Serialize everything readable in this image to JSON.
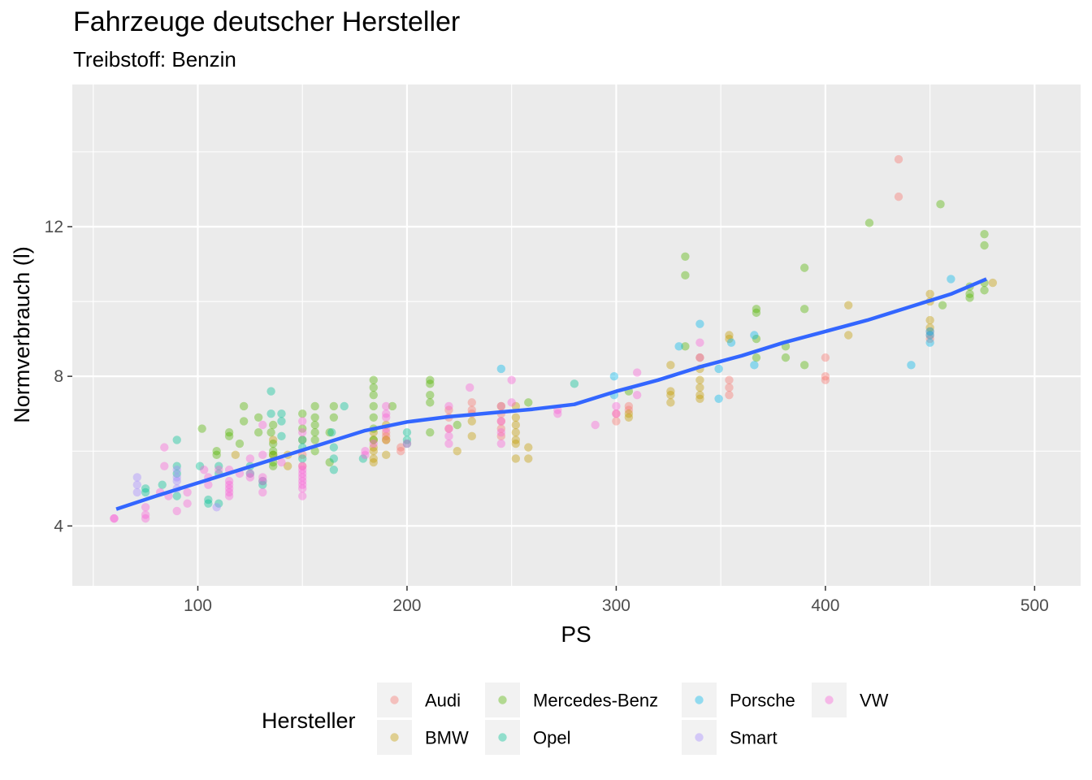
{
  "chart_data": {
    "type": "scatter",
    "title": "Fahrzeuge deutscher Hersteller",
    "subtitle": "Treibstoff: Benzin",
    "xlabel": "PS",
    "ylabel": "Normverbrauch (l)",
    "xlim": [
      40,
      522
    ],
    "ylim": [
      2.4,
      15.8
    ],
    "xticks": [
      100,
      200,
      300,
      400,
      500
    ],
    "yticks": [
      4,
      8,
      12
    ],
    "grid": true,
    "legend": {
      "title": "Hersteller",
      "position": "bottom",
      "entries": [
        {
          "name": "Audi",
          "color": "#F8766D"
        },
        {
          "name": "BMW",
          "color": "#C49A00"
        },
        {
          "name": "Mercedes-Benz",
          "color": "#53B400"
        },
        {
          "name": "Opel",
          "color": "#00C094"
        },
        {
          "name": "Porsche",
          "color": "#00B6EB"
        },
        {
          "name": "Smart",
          "color": "#A58AFF"
        },
        {
          "name": "VW",
          "color": "#FB61D7"
        }
      ]
    },
    "series": [
      {
        "name": "Audi",
        "color": "#F8766D",
        "points": [
          [
            435,
            13.8
          ],
          [
            435,
            12.8
          ],
          [
            400,
            8.5
          ],
          [
            400,
            8.0
          ],
          [
            400,
            7.9
          ],
          [
            354,
            7.9
          ],
          [
            354,
            7.7
          ],
          [
            354,
            7.5
          ],
          [
            306,
            7.2
          ],
          [
            306,
            7.1
          ],
          [
            300,
            7.0
          ],
          [
            300,
            6.8
          ],
          [
            245,
            7.0
          ],
          [
            245,
            6.8
          ],
          [
            245,
            6.6
          ],
          [
            245,
            6.4
          ],
          [
            231,
            7.3
          ],
          [
            231,
            7.1
          ],
          [
            231,
            7.0
          ],
          [
            220,
            7.1
          ],
          [
            220,
            6.9
          ],
          [
            220,
            6.6
          ],
          [
            190,
            6.5
          ],
          [
            190,
            6.4
          ],
          [
            190,
            6.3
          ],
          [
            197,
            6.1
          ],
          [
            197,
            6.0
          ],
          [
            150,
            5.9
          ],
          [
            150,
            5.6
          ],
          [
            450,
            9.2
          ],
          [
            450,
            9.1
          ],
          [
            450,
            9.0
          ]
        ]
      },
      {
        "name": "BMW",
        "color": "#C49A00",
        "points": [
          [
            480,
            10.5
          ],
          [
            450,
            10.2
          ],
          [
            450,
            10.0
          ],
          [
            450,
            9.5
          ],
          [
            450,
            9.3
          ],
          [
            411,
            9.9
          ],
          [
            411,
            9.1
          ],
          [
            354,
            9.1
          ],
          [
            354,
            9.0
          ],
          [
            340,
            8.5
          ],
          [
            340,
            8.2
          ],
          [
            340,
            7.9
          ],
          [
            340,
            7.7
          ],
          [
            340,
            7.5
          ],
          [
            340,
            7.4
          ],
          [
            326,
            8.3
          ],
          [
            326,
            7.6
          ],
          [
            326,
            7.5
          ],
          [
            326,
            7.3
          ],
          [
            306,
            7.0
          ],
          [
            306,
            6.9
          ],
          [
            258,
            6.1
          ],
          [
            258,
            5.8
          ],
          [
            252,
            7.2
          ],
          [
            252,
            6.9
          ],
          [
            252,
            6.7
          ],
          [
            252,
            6.5
          ],
          [
            252,
            6.3
          ],
          [
            252,
            6.2
          ],
          [
            252,
            5.8
          ],
          [
            245,
            7.2
          ],
          [
            231,
            6.8
          ],
          [
            231,
            6.4
          ],
          [
            224,
            6.0
          ],
          [
            184,
            6.5
          ],
          [
            184,
            6.3
          ],
          [
            184,
            6.1
          ],
          [
            184,
            6.0
          ],
          [
            184,
            5.8
          ],
          [
            184,
            5.7
          ],
          [
            190,
            6.7
          ],
          [
            190,
            6.3
          ],
          [
            190,
            5.9
          ],
          [
            143,
            5.9
          ],
          [
            143,
            5.6
          ],
          [
            136,
            6.3
          ],
          [
            136,
            5.9
          ],
          [
            150,
            6.3
          ],
          [
            118,
            5.9
          ]
        ]
      },
      {
        "name": "Mercedes-Benz",
        "color": "#53B400",
        "points": [
          [
            455,
            12.6
          ],
          [
            421,
            12.1
          ],
          [
            476,
            11.8
          ],
          [
            476,
            11.5
          ],
          [
            476,
            10.5
          ],
          [
            476,
            10.3
          ],
          [
            469,
            10.4
          ],
          [
            469,
            10.2
          ],
          [
            469,
            10.1
          ],
          [
            456,
            9.9
          ],
          [
            333,
            11.2
          ],
          [
            333,
            10.7
          ],
          [
            333,
            8.8
          ],
          [
            390,
            10.9
          ],
          [
            390,
            9.8
          ],
          [
            390,
            8.3
          ],
          [
            367,
            9.8
          ],
          [
            367,
            9.7
          ],
          [
            367,
            9.0
          ],
          [
            367,
            8.5
          ],
          [
            381,
            8.8
          ],
          [
            381,
            8.5
          ],
          [
            306,
            7.6
          ],
          [
            258,
            7.3
          ],
          [
            211,
            7.9
          ],
          [
            211,
            7.8
          ],
          [
            211,
            7.5
          ],
          [
            211,
            7.3
          ],
          [
            211,
            6.5
          ],
          [
            184,
            7.9
          ],
          [
            184,
            7.7
          ],
          [
            184,
            7.5
          ],
          [
            184,
            7.2
          ],
          [
            184,
            6.9
          ],
          [
            184,
            6.6
          ],
          [
            184,
            6.3
          ],
          [
            156,
            7.2
          ],
          [
            156,
            6.9
          ],
          [
            156,
            6.7
          ],
          [
            156,
            6.5
          ],
          [
            156,
            6.3
          ],
          [
            156,
            6.0
          ],
          [
            163,
            6.5
          ],
          [
            163,
            5.7
          ],
          [
            136,
            6.7
          ],
          [
            136,
            6.2
          ],
          [
            136,
            6.0
          ],
          [
            136,
            5.9
          ],
          [
            136,
            5.7
          ],
          [
            136,
            5.6
          ],
          [
            122,
            7.2
          ],
          [
            122,
            6.8
          ],
          [
            129,
            6.5
          ],
          [
            129,
            6.9
          ],
          [
            115,
            6.5
          ],
          [
            115,
            6.4
          ],
          [
            109,
            6.0
          ],
          [
            109,
            5.9
          ],
          [
            102,
            6.6
          ],
          [
            150,
            7.0
          ],
          [
            150,
            6.6
          ],
          [
            224,
            6.7
          ],
          [
            165,
            7.2
          ],
          [
            165,
            6.9
          ],
          [
            193,
            7.2
          ],
          [
            120,
            6.2
          ],
          [
            135,
            6.5
          ]
        ]
      },
      {
        "name": "Opel",
        "color": "#00C094",
        "points": [
          [
            90,
            6.3
          ],
          [
            90,
            5.6
          ],
          [
            90,
            5.4
          ],
          [
            90,
            4.8
          ],
          [
            75,
            5.0
          ],
          [
            75,
            4.9
          ],
          [
            83,
            5.1
          ],
          [
            101,
            5.6
          ],
          [
            105,
            4.7
          ],
          [
            105,
            4.6
          ],
          [
            110,
            5.6
          ],
          [
            110,
            5.4
          ],
          [
            110,
            4.6
          ],
          [
            125,
            5.6
          ],
          [
            125,
            5.4
          ],
          [
            131,
            5.2
          ],
          [
            131,
            5.1
          ],
          [
            135,
            7.6
          ],
          [
            135,
            7.0
          ],
          [
            140,
            7.0
          ],
          [
            140,
            6.8
          ],
          [
            140,
            6.4
          ],
          [
            150,
            6.3
          ],
          [
            150,
            6.1
          ],
          [
            150,
            5.8
          ],
          [
            165,
            6.1
          ],
          [
            165,
            5.8
          ],
          [
            165,
            5.5
          ],
          [
            170,
            7.2
          ],
          [
            179,
            5.8
          ],
          [
            200,
            6.5
          ],
          [
            200,
            6.3
          ],
          [
            200,
            6.2
          ],
          [
            280,
            7.8
          ],
          [
            164,
            6.5
          ]
        ]
      },
      {
        "name": "Porsche",
        "color": "#00B6EB",
        "points": [
          [
            460,
            10.6
          ],
          [
            450,
            9.2
          ],
          [
            450,
            9.1
          ],
          [
            450,
            8.9
          ],
          [
            441,
            8.3
          ],
          [
            366,
            9.1
          ],
          [
            366,
            8.3
          ],
          [
            355,
            8.9
          ],
          [
            349,
            8.2
          ],
          [
            349,
            7.4
          ],
          [
            340,
            9.4
          ],
          [
            330,
            8.8
          ],
          [
            299,
            8.0
          ],
          [
            299,
            7.5
          ],
          [
            245,
            8.2
          ]
        ]
      },
      {
        "name": "Smart",
        "color": "#A58AFF",
        "points": [
          [
            71,
            5.3
          ],
          [
            71,
            5.1
          ],
          [
            71,
            4.9
          ],
          [
            90,
            5.5
          ],
          [
            90,
            5.3
          ],
          [
            90,
            5.2
          ],
          [
            90,
            5.0
          ],
          [
            109,
            4.5
          ]
        ]
      },
      {
        "name": "VW",
        "color": "#FB61D7",
        "points": [
          [
            60,
            4.2
          ],
          [
            60,
            4.2
          ],
          [
            75,
            4.5
          ],
          [
            75,
            4.3
          ],
          [
            75,
            4.2
          ],
          [
            82,
            4.9
          ],
          [
            84,
            6.1
          ],
          [
            84,
            5.6
          ],
          [
            86,
            4.8
          ],
          [
            90,
            4.4
          ],
          [
            95,
            4.9
          ],
          [
            95,
            4.6
          ],
          [
            103,
            5.5
          ],
          [
            105,
            5.3
          ],
          [
            105,
            5.1
          ],
          [
            115,
            5.5
          ],
          [
            115,
            5.2
          ],
          [
            115,
            5.1
          ],
          [
            115,
            5.0
          ],
          [
            115,
            4.9
          ],
          [
            115,
            4.8
          ],
          [
            125,
            5.8
          ],
          [
            125,
            5.4
          ],
          [
            125,
            5.3
          ],
          [
            131,
            6.7
          ],
          [
            131,
            5.9
          ],
          [
            131,
            5.3
          ],
          [
            131,
            5.2
          ],
          [
            131,
            4.9
          ],
          [
            150,
            6.8
          ],
          [
            150,
            6.5
          ],
          [
            150,
            5.6
          ],
          [
            150,
            5.5
          ],
          [
            150,
            5.4
          ],
          [
            150,
            5.3
          ],
          [
            150,
            5.2
          ],
          [
            150,
            5.1
          ],
          [
            150,
            5.0
          ],
          [
            150,
            4.8
          ],
          [
            180,
            6.0
          ],
          [
            180,
            5.9
          ],
          [
            184,
            6.2
          ],
          [
            190,
            7.2
          ],
          [
            190,
            7.0
          ],
          [
            190,
            6.9
          ],
          [
            190,
            6.6
          ],
          [
            200,
            6.2
          ],
          [
            220,
            7.2
          ],
          [
            220,
            6.6
          ],
          [
            220,
            6.4
          ],
          [
            220,
            6.2
          ],
          [
            230,
            7.7
          ],
          [
            245,
            7.2
          ],
          [
            245,
            6.8
          ],
          [
            245,
            6.5
          ],
          [
            245,
            6.2
          ],
          [
            250,
            7.9
          ],
          [
            250,
            7.3
          ],
          [
            272,
            7.1
          ],
          [
            272,
            7.0
          ],
          [
            290,
            6.7
          ],
          [
            300,
            7.2
          ],
          [
            300,
            7.0
          ],
          [
            310,
            8.1
          ],
          [
            310,
            7.5
          ],
          [
            340,
            8.9
          ],
          [
            340,
            8.5
          ],
          [
            110,
            5.5
          ],
          [
            140,
            5.7
          ],
          [
            120,
            5.4
          ]
        ]
      }
    ],
    "trend_line": {
      "type": "loess",
      "color": "#3366FF",
      "points": [
        [
          61,
          4.45
        ],
        [
          80,
          4.8
        ],
        [
          100,
          5.15
        ],
        [
          120,
          5.5
        ],
        [
          140,
          5.85
        ],
        [
          160,
          6.2
        ],
        [
          180,
          6.55
        ],
        [
          200,
          6.78
        ],
        [
          220,
          6.92
        ],
        [
          240,
          7.02
        ],
        [
          260,
          7.12
        ],
        [
          280,
          7.25
        ],
        [
          300,
          7.6
        ],
        [
          320,
          7.9
        ],
        [
          340,
          8.25
        ],
        [
          360,
          8.55
        ],
        [
          380,
          8.9
        ],
        [
          400,
          9.2
        ],
        [
          420,
          9.5
        ],
        [
          440,
          9.85
        ],
        [
          460,
          10.2
        ],
        [
          477,
          10.6
        ]
      ]
    }
  }
}
